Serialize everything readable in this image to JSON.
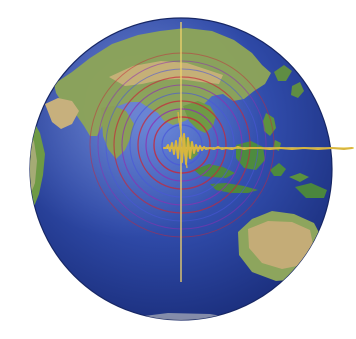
{
  "scene": {
    "subject": "globe-seismic-wave-illustration",
    "palette": {
      "background": "#ffffff",
      "ocean_deep": "#1b2f7d",
      "ocean_mid": "#2f4aa8",
      "ocean_light": "#4d6fd1",
      "land_green": "#6e9a45",
      "land_olive": "#8ca35a",
      "land_tan": "#b9ad7c",
      "land_desert": "#c8b178",
      "land_light": "#d9d3b8",
      "ring_red": "#c6283a",
      "ring_magenta": "#8e2fb1",
      "ring_blue": "#4a57d9",
      "crosshair": "#f0d36b",
      "seismogram": "#d8b63e"
    },
    "icons": [
      "globe-icon",
      "earthquake-rings-icon",
      "crosshair-icon",
      "seismogram-trace-icon"
    ]
  }
}
